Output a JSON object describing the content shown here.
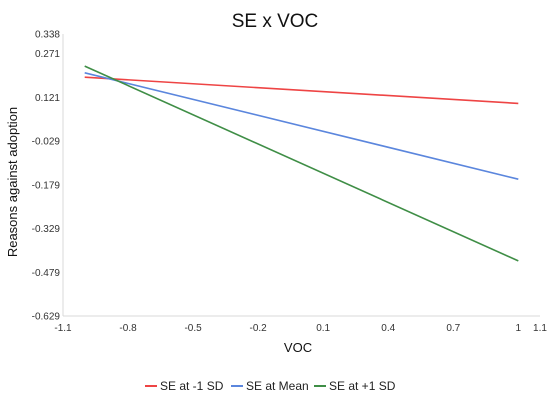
{
  "chart_data": {
    "type": "line",
    "title": "SE x VOC",
    "xlabel": "VOC",
    "ylabel": "Reasons against adoption",
    "xlim": [
      -1.1,
      1.1
    ],
    "ylim": [
      -0.629,
      0.338
    ],
    "x_ticks": [
      -1.1,
      -0.8,
      -0.5,
      -0.2,
      0.1,
      0.4,
      0.7,
      1,
      1.1
    ],
    "x_tick_labels": [
      "-1.1",
      "-0.8",
      "-0.5",
      "-0.2",
      "0.1",
      "0.4",
      "0.7",
      "1",
      "1.1"
    ],
    "y_ticks": [
      0.338,
      0.271,
      0.121,
      -0.029,
      -0.179,
      -0.329,
      -0.479,
      -0.629
    ],
    "y_tick_labels": [
      "0.338",
      "0.271",
      "0.121",
      "-0.029",
      "-0.179",
      "-0.329",
      "-0.479",
      "-0.629"
    ],
    "grid": false,
    "legend_position": "bottom",
    "x": [
      -1,
      1
    ],
    "series": [
      {
        "name": "SE at -1 SD",
        "color": "#ee4444",
        "values": [
          0.19,
          0.1
        ]
      },
      {
        "name": "SE at Mean",
        "color": "#5b86dd",
        "values": [
          0.205,
          -0.16
        ]
      },
      {
        "name": "SE at +1 SD",
        "color": "#3f8e46",
        "values": [
          0.228,
          -0.44
        ]
      }
    ]
  }
}
